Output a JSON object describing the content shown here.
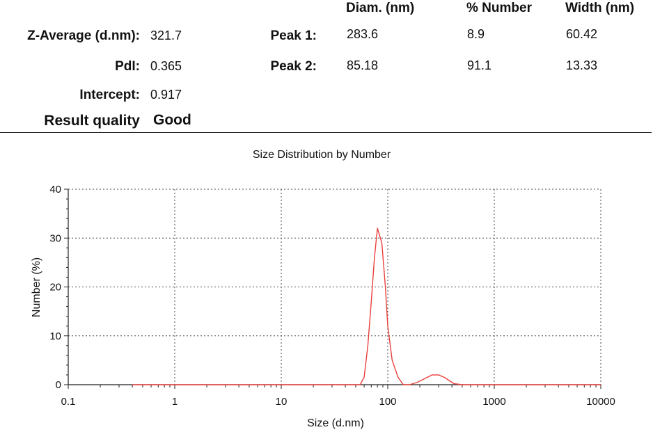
{
  "summary": {
    "z_average_label": "Z-Average (d.nm):",
    "z_average_value": "321.7",
    "pdi_label": "PdI:",
    "pdi_value": "0.365",
    "intercept_label": "Intercept:",
    "intercept_value": "0.917",
    "result_quality_label": "Result quality",
    "result_quality_value": "Good"
  },
  "peaks": {
    "headers": {
      "diam": "Diam. (nm)",
      "number": "% Number",
      "width": "Width (nm)"
    },
    "rows": [
      {
        "label": "Peak 1:",
        "diam": "283.6",
        "number": "8.9",
        "width": "60.42"
      },
      {
        "label": "Peak 2:",
        "diam": "85.18",
        "number": "91.1",
        "width": "13.33"
      }
    ]
  },
  "chart_data": {
    "type": "line",
    "title": "Size Distribution by Number",
    "xlabel": "Size (d.nm)",
    "ylabel": "Number (%)",
    "x_scale": "log",
    "xlim": [
      0.1,
      10000
    ],
    "ylim": [
      0,
      40
    ],
    "x_ticks": [
      "0.1",
      "1",
      "10",
      "100",
      "1000",
      "10000"
    ],
    "y_ticks": [
      "0",
      "10",
      "20",
      "30",
      "40"
    ],
    "grid": true,
    "line_color": "#e8403c",
    "series": [
      {
        "x": [
          0.4,
          1,
          10,
          40,
          55,
          60,
          65,
          70,
          75,
          80,
          88,
          95,
          100,
          110,
          125,
          140,
          160,
          190,
          220,
          260,
          300,
          340,
          380,
          420,
          500,
          1000,
          10000
        ],
        "y": [
          0,
          0,
          0,
          0,
          0,
          1.5,
          8,
          17,
          26,
          32,
          29,
          20,
          12,
          5,
          1.5,
          0,
          0,
          0.5,
          1.2,
          2,
          2,
          1.5,
          0.8,
          0.2,
          0,
          0,
          0
        ]
      }
    ]
  }
}
